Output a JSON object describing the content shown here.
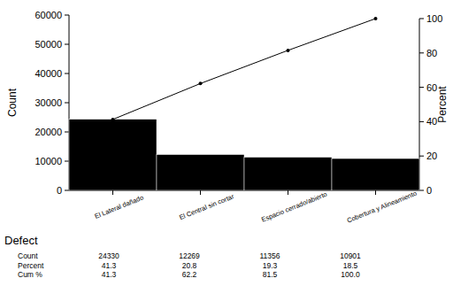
{
  "chart_data": {
    "type": "pareto",
    "x_label": "Defect",
    "y_label": "Count",
    "y2_label": "Percent",
    "categories": [
      "El Lateral dañado",
      "El Central sin cortar",
      "Espacio cerrado/abierto",
      "Cobertura y Alineamiento"
    ],
    "series": [
      {
        "name": "Count",
        "type": "bar",
        "color": "#000000",
        "values": [
          24330,
          12269,
          11356,
          10901
        ]
      },
      {
        "name": "Percent",
        "type": "table",
        "values": [
          41.3,
          20.8,
          19.3,
          18.5
        ]
      },
      {
        "name": "Cum %",
        "type": "line",
        "axis": "y2",
        "color": "#000000",
        "marker": "circle",
        "values": [
          41.3,
          62.2,
          81.5,
          100
        ],
        "value_labels": [
          "41.3",
          "62.2",
          "81.5",
          "100.0"
        ]
      }
    ],
    "ylim": [
      0,
      60000
    ],
    "yticks": [
      0,
      10000,
      20000,
      30000,
      40000,
      50000,
      60000
    ],
    "y2lim": [
      0,
      100
    ],
    "y2ticks": [
      0,
      20,
      40,
      60,
      80,
      100
    ],
    "grid": false
  }
}
